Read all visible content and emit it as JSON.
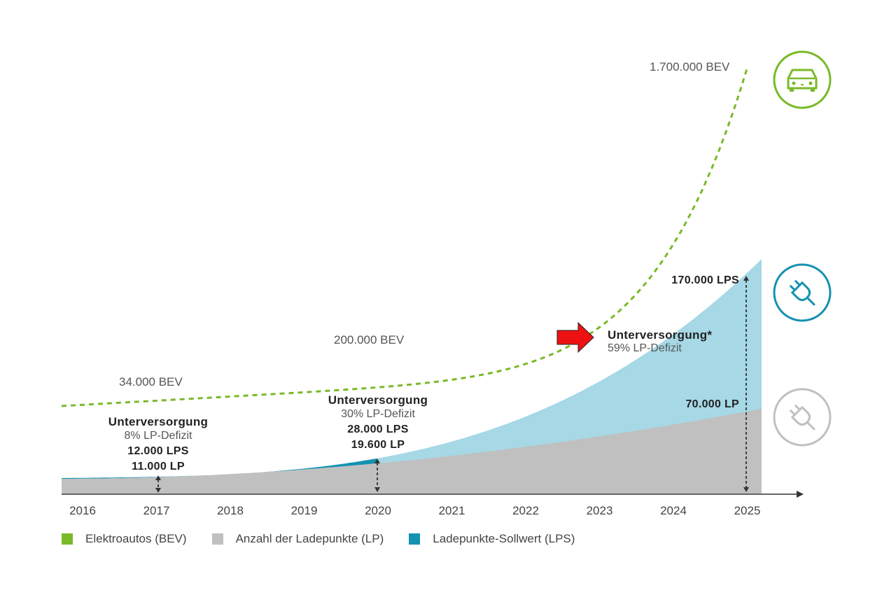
{
  "chart_data": {
    "type": "area",
    "categories": [
      "2016",
      "2017",
      "2018",
      "2019",
      "2020",
      "2021",
      "2022",
      "2023",
      "2024",
      "2025"
    ],
    "series": [
      {
        "name": "Elektroautos (BEV)",
        "color": "#7ab929",
        "style": "dashed-line"
      },
      {
        "name": "Anzahl der Ladepunkte (LP)",
        "color": "#c0c0c0",
        "style": "area"
      },
      {
        "name": "Ladepunkte-Sollwert (LPS)",
        "color": "#1592b1",
        "style": "area",
        "forecast_color": "#a6d8e6"
      }
    ],
    "bev_labels": [
      {
        "text": "34.000 BEV",
        "year": 2017
      },
      {
        "text": "200.000 BEV",
        "year": 2020
      },
      {
        "text": "1.700.000 BEV",
        "year": 2025
      }
    ],
    "annotations": [
      {
        "year": 2017,
        "title": "Unterversorgung",
        "subtitle": "8% LP-Defizit",
        "lps": "12.000 LPS",
        "lp": "11.000 LP"
      },
      {
        "year": 2020,
        "title": "Unterversorgung",
        "subtitle": "30% LP-Defizit",
        "lps": "28.000 LPS",
        "lp": "19.600 LP"
      },
      {
        "year": 2025,
        "title": "Unterversorgung*",
        "subtitle": "59% LP-Defizit",
        "lps": "170.000 LPS",
        "lp": "70.000 LP"
      }
    ],
    "icons": [
      "car-icon",
      "plug-icon",
      "plug-icon"
    ],
    "highlight": {
      "shape": "red-arrow",
      "color": "#ee1111"
    },
    "grid": false,
    "legend_position": "bottom-left"
  }
}
